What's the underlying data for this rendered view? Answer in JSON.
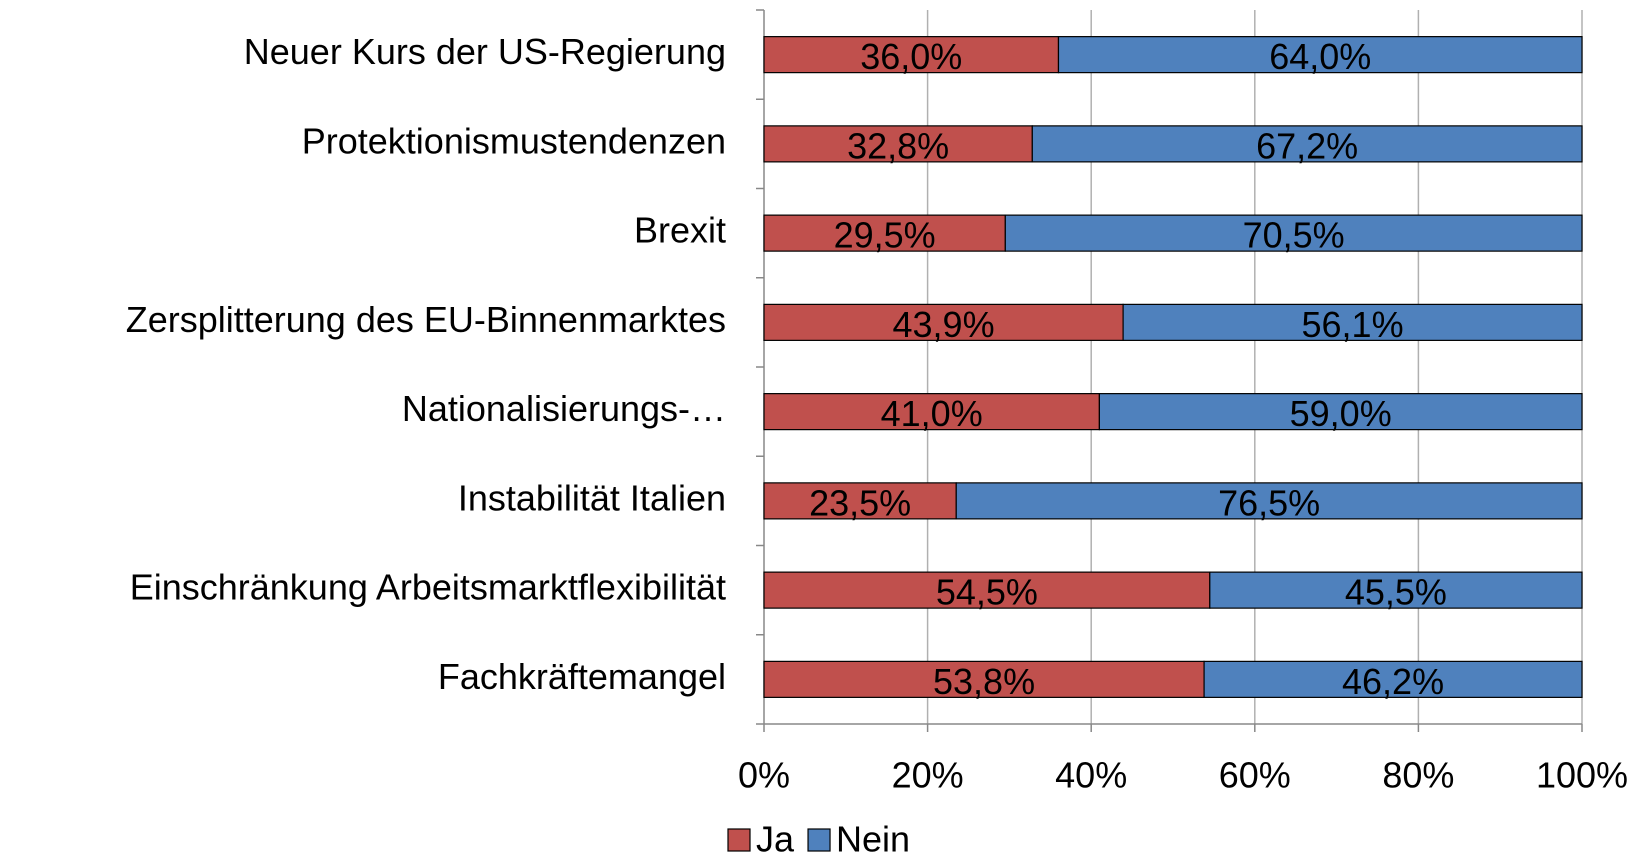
{
  "chart_data": {
    "type": "stacked_bar_horizontal",
    "categories": [
      "Neuer Kurs der US-Regierung",
      "Protektionismustendenzen",
      "Brexit",
      "Zersplitterung des EU-Binnenmarktes",
      "Nationalisierungs-…",
      "Instabilität Italien",
      "Einschränkung Arbeitsmarktflexibilität",
      "Fachkräftemangel"
    ],
    "series": [
      {
        "name": "Ja",
        "color": "#c0504d",
        "values": [
          36.0,
          32.8,
          29.5,
          43.9,
          41.0,
          23.5,
          54.5,
          53.8
        ],
        "value_labels": [
          "36,0%",
          "32,8%",
          "29,5%",
          "43,9%",
          "41,0%",
          "23,5%",
          "54,5%",
          "53,8%"
        ]
      },
      {
        "name": "Nein",
        "color": "#4f81bd",
        "values": [
          64.0,
          67.2,
          70.5,
          56.1,
          59.0,
          76.5,
          45.5,
          46.2
        ],
        "value_labels": [
          "64,0%",
          "67,2%",
          "70,5%",
          "56,1%",
          "59,0%",
          "76,5%",
          "45,5%",
          "46,2%"
        ]
      }
    ],
    "xlim": [
      0,
      100
    ],
    "xticks": [
      {
        "value": 0,
        "label": "0%"
      },
      {
        "value": 20,
        "label": "20%"
      },
      {
        "value": 40,
        "label": "40%"
      },
      {
        "value": 60,
        "label": "60%"
      },
      {
        "value": 80,
        "label": "80%"
      },
      {
        "value": 100,
        "label": "100%"
      }
    ],
    "grid": true,
    "legend": "bottom"
  }
}
